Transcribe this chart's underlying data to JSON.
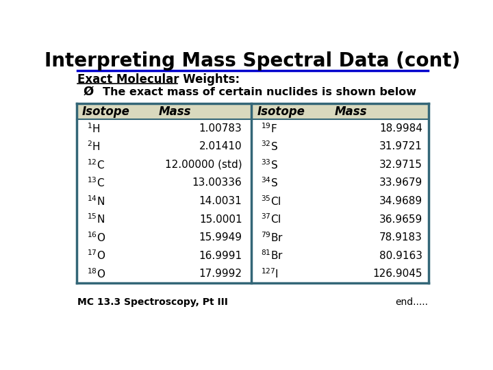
{
  "title": "Interpreting Mass Spectral Data (cont)",
  "subtitle": "Exact Molecular Weights:",
  "bullet": "The exact mass of certain nuclides is shown below",
  "header_bg": "#d9d9be",
  "table_border": "#336677",
  "title_color": "#000000",
  "col_headers": [
    "Isotope",
    "Mass",
    "Isotope",
    "Mass"
  ],
  "left_isotopes": [
    [
      "$^{1}$H",
      "1.00783"
    ],
    [
      "$^{2}$H",
      "2.01410"
    ],
    [
      "$^{12}$C",
      "12.00000 (std)"
    ],
    [
      "$^{13}$C",
      "13.00336"
    ],
    [
      "$^{14}$N",
      "14.0031"
    ],
    [
      "$^{15}$N",
      "15.0001"
    ],
    [
      "$^{16}$O",
      "15.9949"
    ],
    [
      "$^{17}$O",
      "16.9991"
    ],
    [
      "$^{18}$O",
      "17.9992"
    ]
  ],
  "right_isotopes": [
    [
      "$^{19}$F",
      "18.9984"
    ],
    [
      "$^{32}$S",
      "31.9721"
    ],
    [
      "$^{33}$S",
      "32.9715"
    ],
    [
      "$^{34}$S",
      "33.9679"
    ],
    [
      "$^{35}$Cl",
      "34.9689"
    ],
    [
      "$^{37}$Cl",
      "36.9659"
    ],
    [
      "$^{79}$Br",
      "78.9183"
    ],
    [
      "$^{81}$Br",
      "80.9163"
    ],
    [
      "$^{127}$I",
      "126.9045"
    ]
  ],
  "footer_left": "MC 13.3 Spectroscopy, Pt III",
  "footer_right": "end.....",
  "title_line_color": "#0000cc",
  "bg_color": "#ffffff"
}
